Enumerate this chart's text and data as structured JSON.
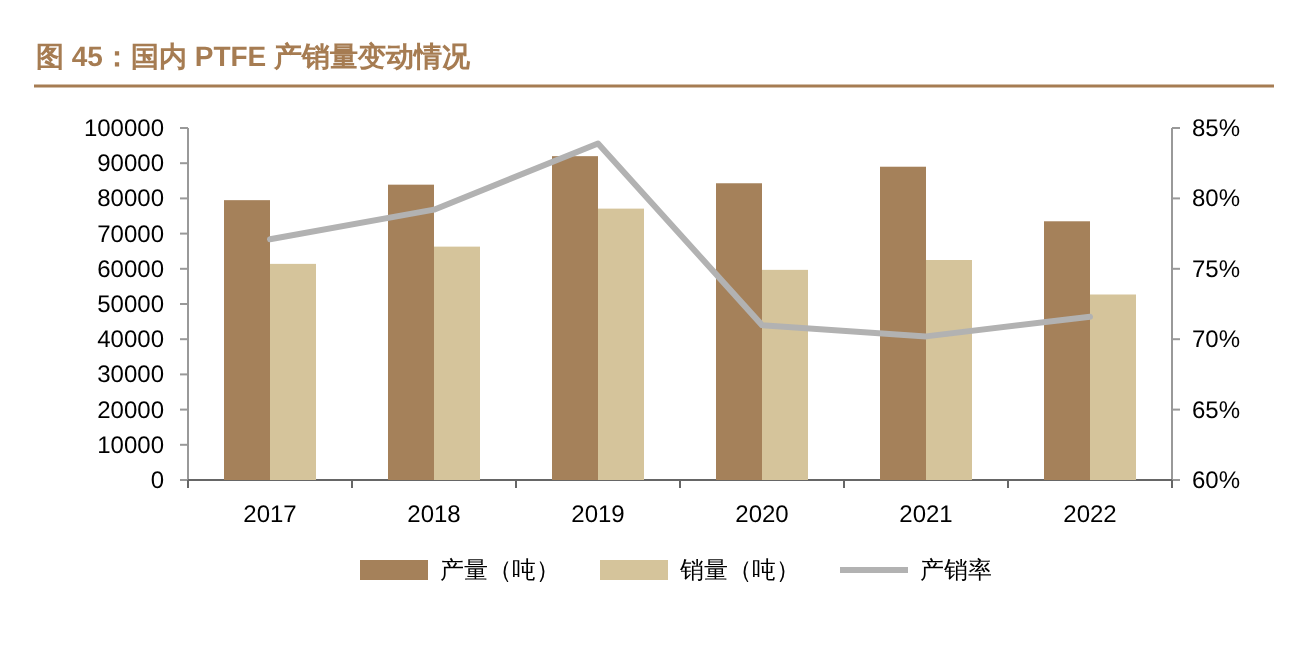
{
  "chart_data": {
    "type": "bar",
    "title": "图 45：国内 PTFE 产销量变动情况",
    "categories": [
      "2017",
      "2018",
      "2019",
      "2020",
      "2021",
      "2022"
    ],
    "series": [
      {
        "name": "产量（吨）",
        "color": "#a5815a",
        "values": [
          79500,
          83900,
          92000,
          84300,
          89000,
          73500
        ]
      },
      {
        "name": "销量（吨）",
        "color": "#d5c49b",
        "values": [
          61400,
          66300,
          77100,
          59700,
          62500,
          52700
        ]
      },
      {
        "name": "产销率",
        "type": "line",
        "axis": "y2",
        "color": "#b2b2b2",
        "values": [
          77.1,
          79.2,
          83.9,
          71.0,
          70.2,
          71.6
        ]
      }
    ],
    "ylim": [
      0,
      100000
    ],
    "yticks": [
      0,
      10000,
      20000,
      30000,
      40000,
      50000,
      60000,
      70000,
      80000,
      90000,
      100000
    ],
    "y2lim": [
      60,
      85
    ],
    "y2ticks": [
      {
        "value": 60,
        "label": "60%"
      },
      {
        "value": 65,
        "label": "65%"
      },
      {
        "value": 70,
        "label": "70%"
      },
      {
        "value": 75,
        "label": "75%"
      },
      {
        "value": 80,
        "label": "80%"
      },
      {
        "value": 85,
        "label": "85%"
      }
    ],
    "grid": false,
    "legend": "bottom"
  }
}
